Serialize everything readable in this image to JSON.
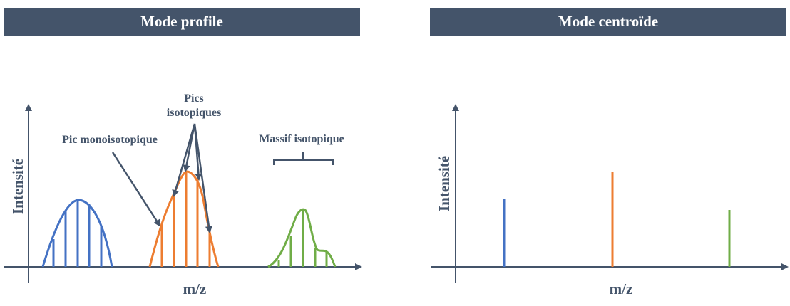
{
  "headers": {
    "left": "Mode profile",
    "right": "Mode centroïde"
  },
  "left_panel": {
    "y_axis_label": "Intensité",
    "x_axis_label": "m/z",
    "annotations": {
      "monoisotopic": "Pic monoisotopique",
      "isotopic_line1": "Pics",
      "isotopic_line2": "isotopiques",
      "massif": "Massif isotopique"
    }
  },
  "right_panel": {
    "y_axis_label": "Intensité",
    "x_axis_label": "m/z"
  },
  "colors": {
    "header_bg": "#44546a",
    "axis": "#44546a",
    "blue": "#4472c4",
    "orange": "#ed7d31",
    "green": "#70ad47"
  }
}
